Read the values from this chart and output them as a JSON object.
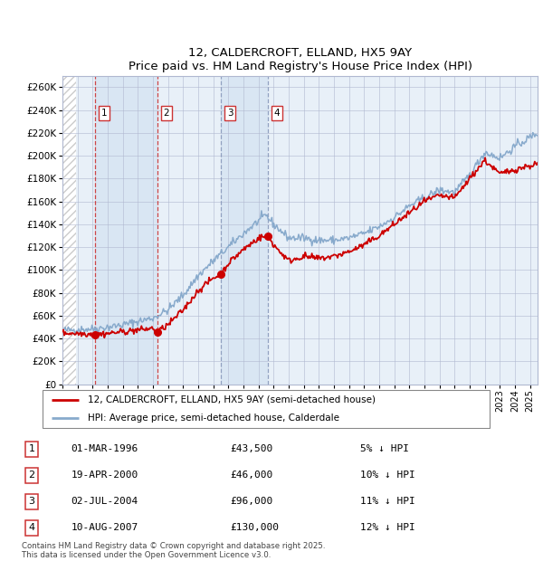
{
  "title": "12, CALDERCROFT, ELLAND, HX5 9AY",
  "subtitle": "Price paid vs. HM Land Registry's House Price Index (HPI)",
  "ylim": [
    0,
    270000
  ],
  "yticks": [
    0,
    20000,
    40000,
    60000,
    80000,
    100000,
    120000,
    140000,
    160000,
    180000,
    200000,
    220000,
    240000,
    260000
  ],
  "background_color": "#ffffff",
  "plot_bg_color": "#e8f0f8",
  "grid_color": "#b0b8d0",
  "legend_entries": [
    "12, CALDERCROFT, ELLAND, HX5 9AY (semi-detached house)",
    "HPI: Average price, semi-detached house, Calderdale"
  ],
  "line_color_red": "#cc0000",
  "line_color_blue": "#88aacc",
  "transactions": [
    {
      "num": 1,
      "date": "01-MAR-1996",
      "price": 43500,
      "pct": "5%",
      "x_year": 1996.17,
      "dash": "red"
    },
    {
      "num": 2,
      "date": "19-APR-2000",
      "price": 46000,
      "pct": "10%",
      "x_year": 2000.3,
      "dash": "red"
    },
    {
      "num": 3,
      "date": "02-JUL-2004",
      "price": 96000,
      "pct": "11%",
      "x_year": 2004.5,
      "dash": "blue"
    },
    {
      "num": 4,
      "date": "10-AUG-2007",
      "price": 130000,
      "pct": "12%",
      "x_year": 2007.61,
      "dash": "blue"
    }
  ],
  "footer": "Contains HM Land Registry data © Crown copyright and database right 2025.\nThis data is licensed under the Open Government Licence v3.0.",
  "xmin": 1994.0,
  "xmax": 2025.5,
  "hpi_knots_x": [
    1994,
    1995,
    1996,
    1997,
    1998,
    1999,
    2000,
    2001,
    2002,
    2003,
    2004,
    2005,
    2006,
    2007,
    2007.5,
    2008,
    2009,
    2010,
    2011,
    2012,
    2013,
    2014,
    2015,
    2016,
    2017,
    2018,
    2019,
    2020,
    2021,
    2022,
    2023,
    2024,
    2025.5
  ],
  "hpi_knots_y": [
    47000,
    48000,
    48500,
    50000,
    52000,
    55000,
    58000,
    65000,
    78000,
    95000,
    108000,
    120000,
    132000,
    143000,
    148000,
    140000,
    128000,
    128000,
    126000,
    126000,
    128000,
    132000,
    138000,
    146000,
    156000,
    163000,
    170000,
    168000,
    183000,
    203000,
    198000,
    208000,
    220000
  ],
  "price_knots_x": [
    1994,
    1995,
    1996.0,
    1996.17,
    1997,
    1998,
    1999,
    2000.0,
    2000.3,
    2001,
    2002,
    2003,
    2004.0,
    2004.5,
    2005,
    2006,
    2007.0,
    2007.61,
    2008,
    2009,
    2010,
    2011,
    2012,
    2013,
    2014,
    2015,
    2016,
    2017,
    2018,
    2019,
    2020,
    2021,
    2022,
    2023,
    2024,
    2025.5
  ],
  "price_knots_y": [
    45000,
    44500,
    44000,
    43500,
    44500,
    46000,
    47500,
    49000,
    46000,
    52000,
    65000,
    82000,
    93000,
    96000,
    106000,
    118000,
    128000,
    130000,
    122000,
    108000,
    112000,
    110000,
    112000,
    116000,
    122000,
    130000,
    140000,
    150000,
    160000,
    165000,
    163000,
    180000,
    196000,
    184000,
    188000,
    193000
  ]
}
